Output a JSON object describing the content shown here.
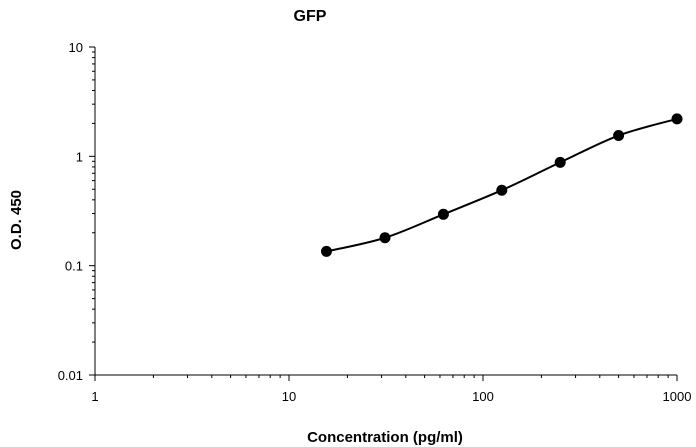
{
  "chart_data": {
    "type": "scatter",
    "title": "GFP",
    "xlabel": "Concentration (pg/ml)",
    "ylabel": "O.D. 450",
    "x_scale": "log",
    "y_scale": "log",
    "xlim": [
      1,
      1000
    ],
    "ylim": [
      0.01,
      10
    ],
    "x_ticks": [
      1,
      10,
      100,
      1000
    ],
    "x_tick_labels": [
      "1",
      "10",
      "100",
      "1000"
    ],
    "y_ticks": [
      0.01,
      0.1,
      1,
      10
    ],
    "y_tick_labels": [
      "0.01",
      "0.1",
      "1",
      "10"
    ],
    "grid": false,
    "series": [
      {
        "x": [
          15.6,
          31.25,
          62.5,
          125,
          250,
          500,
          1000
        ],
        "y": [
          0.135,
          0.18,
          0.295,
          0.49,
          0.88,
          1.55,
          2.2
        ],
        "marker": "circle",
        "line": "smooth",
        "color": "#000000"
      }
    ]
  }
}
